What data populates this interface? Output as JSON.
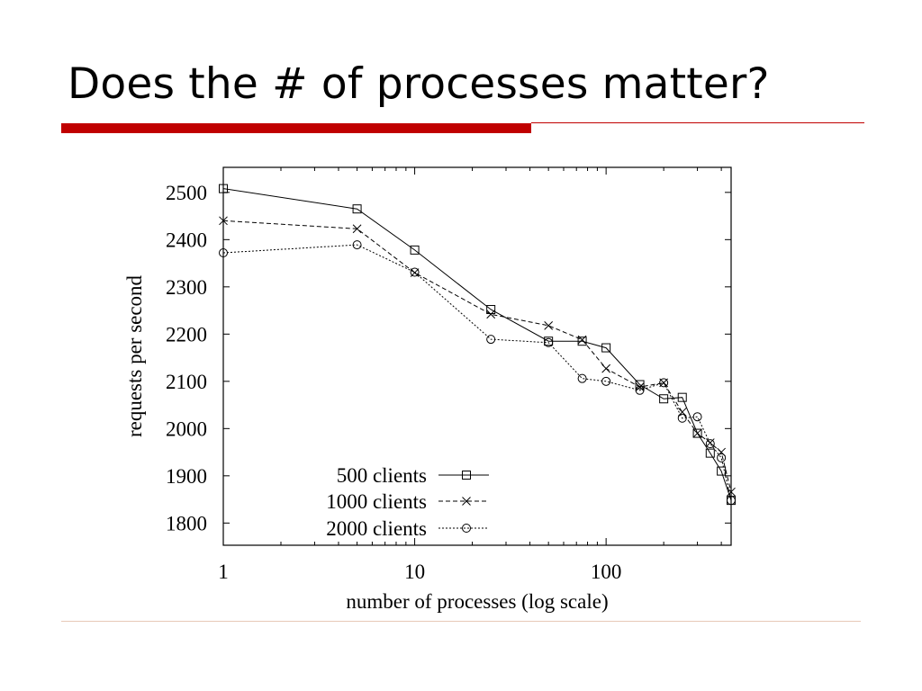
{
  "slide": {
    "title": "Does the # of processes matter?"
  },
  "colors": {
    "accent": "#c00000",
    "footer_rule": "#e7c9b8"
  },
  "chart_data": {
    "type": "line",
    "xlabel": "number of processes (log scale)",
    "ylabel": "requests per second",
    "xscale": "log",
    "xlim": [
      1,
      450
    ],
    "ylim": [
      1753,
      2553
    ],
    "xticks": [
      1,
      10,
      100
    ],
    "yticks": [
      1800,
      1900,
      2000,
      2100,
      2200,
      2300,
      2400,
      2500
    ],
    "legend_position": "bottom-left",
    "grid": false,
    "series": [
      {
        "name": "500 clients",
        "marker": "square",
        "line": "solid",
        "x": [
          1,
          5,
          10,
          25,
          50,
          75,
          100,
          150,
          200,
          250,
          300,
          350,
          400,
          450
        ],
        "values": [
          2508,
          2465,
          2378,
          2252,
          2185,
          2185,
          2171,
          2093,
          2063,
          2066,
          1990,
          1948,
          1910,
          1848
        ]
      },
      {
        "name": "1000 clients",
        "marker": "x",
        "line": "dashed",
        "x": [
          1,
          5,
          10,
          25,
          50,
          75,
          100,
          150,
          200,
          250,
          300,
          350,
          400,
          450
        ],
        "values": [
          2440,
          2423,
          2330,
          2242,
          2218,
          2188,
          2127,
          2088,
          2097,
          2035,
          1990,
          1970,
          1950,
          1866
        ]
      },
      {
        "name": "2000 clients",
        "marker": "circle",
        "line": "dotted",
        "x": [
          1,
          5,
          10,
          25,
          50,
          75,
          100,
          150,
          200,
          250,
          300,
          350,
          400,
          450
        ],
        "values": [
          2372,
          2389,
          2331,
          2189,
          2182,
          2106,
          2100,
          2081,
          2097,
          2022,
          2025,
          1968,
          1938,
          1848
        ]
      }
    ]
  }
}
